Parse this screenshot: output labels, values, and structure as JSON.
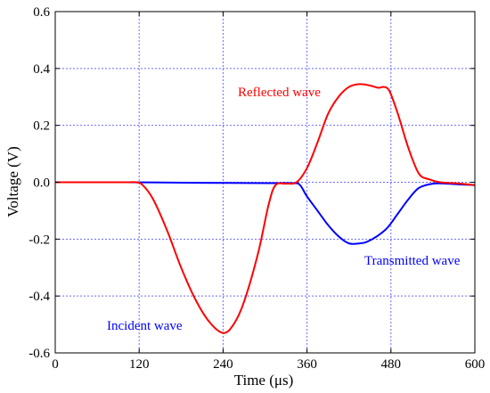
{
  "chart_data": {
    "type": "line",
    "xlabel": "Time (μs)",
    "ylabel": "Voltage (V)",
    "xlim": [
      0,
      600
    ],
    "ylim": [
      -0.6,
      0.6
    ],
    "x_ticks": [
      "0",
      "120",
      "240",
      "360",
      "480",
      "600"
    ],
    "y_ticks": [
      "-0.6",
      "-0.4",
      "-0.2",
      "0.0",
      "0.2",
      "0.4",
      "0.6"
    ],
    "grid": true,
    "series": [
      {
        "annotation": "Reflected wave",
        "color": "#ff0000",
        "annotation_color": "#ff0000",
        "x": [
          0,
          100,
          115,
          125,
          140,
          160,
          180,
          200,
          220,
          240,
          255,
          270,
          290,
          305,
          315,
          330,
          345,
          360,
          375,
          390,
          405,
          420,
          435,
          450,
          462,
          470,
          478,
          490,
          505,
          520,
          535,
          550,
          580,
          600
        ],
        "y": [
          0.0,
          0.0,
          0.0,
          -0.01,
          -0.06,
          -0.17,
          -0.3,
          -0.41,
          -0.49,
          -0.53,
          -0.5,
          -0.42,
          -0.25,
          -0.08,
          -0.01,
          -0.005,
          0.0,
          0.05,
          0.14,
          0.24,
          0.3,
          0.335,
          0.345,
          0.34,
          0.332,
          0.335,
          0.32,
          0.24,
          0.12,
          0.03,
          0.01,
          0.0,
          -0.005,
          -0.01
        ]
      },
      {
        "annotation": "Transmitted wave",
        "color": "#0000ff",
        "annotation_color": "#0000ff",
        "x": [
          0,
          100,
          200,
          300,
          340,
          350,
          360,
          375,
          390,
          405,
          420,
          435,
          445,
          460,
          475,
          490,
          505,
          520,
          540,
          560,
          580,
          600
        ],
        "y": [
          0.0,
          0.0,
          -0.002,
          -0.003,
          -0.003,
          -0.01,
          -0.05,
          -0.1,
          -0.15,
          -0.19,
          -0.215,
          -0.215,
          -0.21,
          -0.19,
          -0.16,
          -0.11,
          -0.06,
          -0.02,
          -0.005,
          -0.005,
          -0.008,
          -0.01
        ]
      }
    ],
    "incident_label": "Incident wave",
    "incident_label_color": "#0000ff",
    "grid_color": "#6b6bff"
  }
}
